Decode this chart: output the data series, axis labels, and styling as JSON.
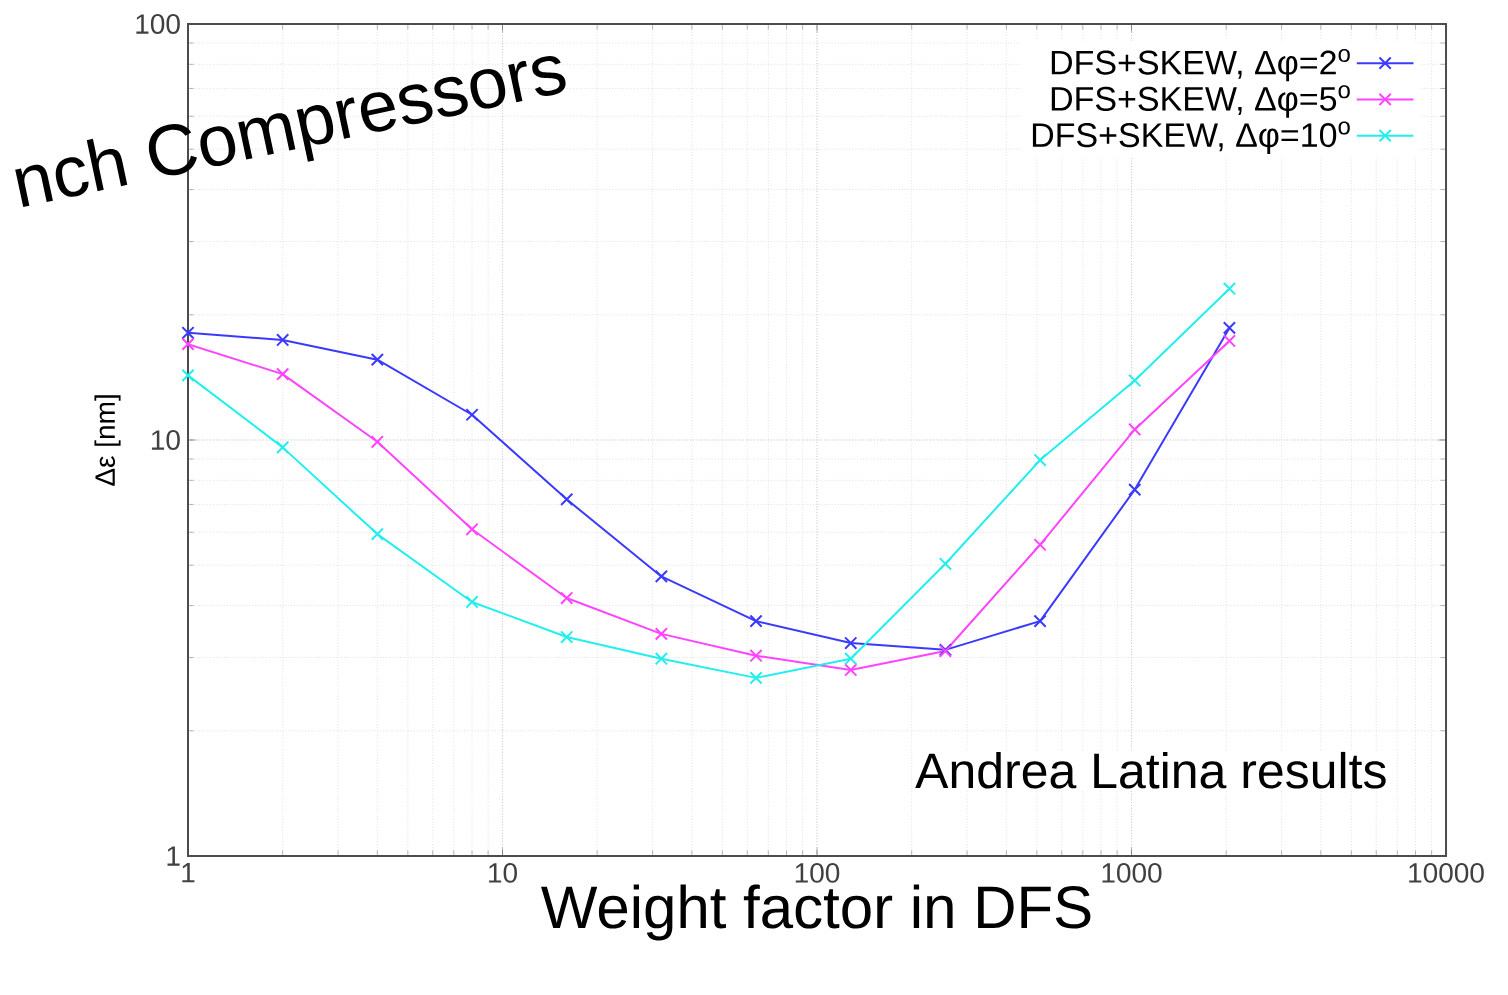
{
  "chart_data": {
    "type": "line",
    "xlabel": "Weight factor in DFS",
    "ylabel": "Δε [nm]",
    "x": [
      1,
      2,
      4,
      8,
      16,
      32,
      64,
      128,
      256,
      512,
      1024,
      2048
    ],
    "series": [
      {
        "name": "DFS+SKEW, Δφ=2$^{o}$",
        "color": "#3a3aff",
        "marker": "cross",
        "values": [
          18.1,
          17.4,
          15.6,
          11.5,
          7.2,
          4.7,
          3.67,
          3.25,
          3.13,
          3.67,
          7.6,
          18.6
        ]
      },
      {
        "name": "DFS+SKEW, Δφ=5$^{o}$",
        "color": "#ff44ff",
        "marker": "cross",
        "values": [
          17.0,
          14.4,
          9.9,
          6.1,
          4.17,
          3.42,
          3.03,
          2.8,
          3.11,
          5.6,
          10.6,
          17.3
        ]
      },
      {
        "name": "DFS+SKEW, Δφ=10$^{o}$",
        "color": "#22eeee",
        "marker": "cross",
        "values": [
          14.3,
          9.6,
          5.94,
          4.08,
          3.36,
          2.98,
          2.68,
          2.98,
          5.04,
          8.95,
          13.9,
          23.1
        ]
      }
    ],
    "xlim": [
      1,
      10000
    ],
    "ylim": [
      1,
      100
    ],
    "xticks": [
      1,
      10,
      100,
      1000,
      10000
    ],
    "yticks": [
      1,
      10,
      100
    ],
    "log": "xy",
    "grid": true,
    "legend": "top right",
    "annotations": [
      "nch Compressors",
      "Andrea Latina results"
    ]
  }
}
